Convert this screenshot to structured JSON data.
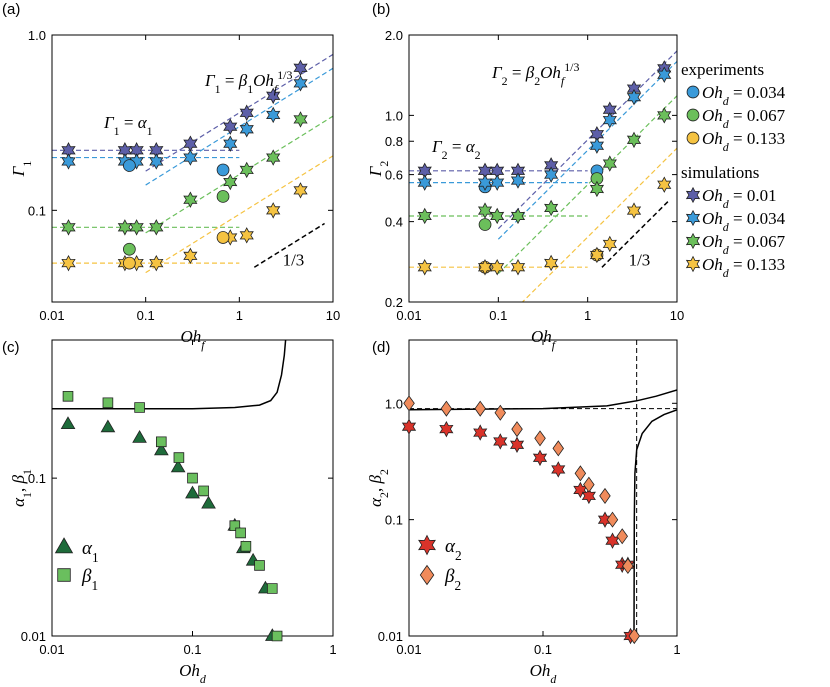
{
  "chart_data": [
    {
      "type": "scatter",
      "label": "(a)",
      "xscale": "log",
      "yscale": "log",
      "xlim": [
        0.01,
        10
      ],
      "ylim": [
        0.03,
        1
      ],
      "xticks": [
        0.01,
        0.1,
        1,
        10
      ],
      "yticks": [
        0.1,
        {
          "value": 1,
          "label": "1.0"
        }
      ],
      "x_label": [
        {
          "text": "Oh"
        },
        {
          "text": "f",
          "pos": "sub"
        }
      ],
      "y_label": [
        {
          "text": "Γ"
        },
        {
          "text": "1",
          "pos": "sub"
        }
      ],
      "annotations": [
        [
          {
            "text": "Γ"
          },
          {
            "text": "1",
            "pos": "sub"
          },
          {
            "text": " = "
          },
          {
            "text": "β"
          },
          {
            "text": "1",
            "pos": "sub"
          },
          {
            "text": "Oh"
          },
          {
            "text": "f",
            "pos": "sub"
          },
          {
            "text": "1/3",
            "pos": "super"
          }
        ],
        [
          {
            "text": "Γ"
          },
          {
            "text": "1",
            "pos": "sub"
          },
          {
            "text": " = "
          },
          {
            "text": "α"
          },
          {
            "text": "1",
            "pos": "sub"
          }
        ]
      ],
      "slope": {
        "label": "1/3",
        "value": 0.333
      },
      "series": [
        {
          "marker": "star",
          "color": "#5d5fa8",
          "x": [
            0.015,
            0.06,
            0.08,
            0.13,
            0.3,
            0.8,
            1.2,
            2.3,
            4.5
          ],
          "values": [
            0.22,
            0.22,
            0.22,
            0.22,
            0.24,
            0.3,
            0.36,
            0.45,
            0.65
          ],
          "alpha": 0.22,
          "beta": 0.36
        },
        {
          "marker": "star",
          "color": "#3a9ad9",
          "x": [
            0.015,
            0.06,
            0.08,
            0.13,
            0.3,
            0.8,
            1.2,
            2.3,
            4.5
          ],
          "values": [
            0.19,
            0.19,
            0.19,
            0.19,
            0.2,
            0.24,
            0.29,
            0.35,
            0.53
          ],
          "alpha": 0.2,
          "beta": 0.3
        },
        {
          "marker": "star",
          "color": "#6bbf5b",
          "x": [
            0.015,
            0.06,
            0.08,
            0.13,
            0.3,
            0.8,
            1.2,
            2.3,
            4.5
          ],
          "values": [
            0.08,
            0.08,
            0.08,
            0.08,
            0.115,
            0.145,
            0.17,
            0.2,
            0.33
          ],
          "alpha": 0.08,
          "beta": 0.16
        },
        {
          "marker": "star",
          "color": "#f5c342",
          "x": [
            0.015,
            0.06,
            0.08,
            0.13,
            0.3,
            0.8,
            1.2,
            2.3,
            4.5
          ],
          "values": [
            0.05,
            0.05,
            0.05,
            0.05,
            0.055,
            0.07,
            0.072,
            0.1,
            0.13
          ],
          "alpha": 0.05,
          "beta": 0.095
        },
        {
          "marker": "circle",
          "color": "#3a9ad9",
          "x": [
            0.067,
            0.67
          ],
          "values": [
            0.18,
            0.17
          ]
        },
        {
          "marker": "circle",
          "color": "#6bbf5b",
          "x": [
            0.067,
            0.67
          ],
          "values": [
            0.06,
            0.12
          ]
        },
        {
          "marker": "circle",
          "color": "#f5c342",
          "x": [
            0.067,
            0.67
          ],
          "values": [
            0.05,
            0.07
          ]
        }
      ]
    },
    {
      "type": "scatter",
      "label": "(b)",
      "xscale": "log",
      "yscale": "log",
      "xlim": [
        0.01,
        10
      ],
      "ylim": [
        0.2,
        2
      ],
      "xticks": [
        0.01,
        0.1,
        1,
        10
      ],
      "yticks": [
        0.2,
        0.4,
        0.6,
        0.8,
        {
          "value": 1,
          "label": "1.0"
        },
        {
          "value": 2,
          "label": "2.0"
        }
      ],
      "x_label": [
        {
          "text": "Oh"
        },
        {
          "text": "f",
          "pos": "sub"
        }
      ],
      "y_label": [
        {
          "text": "Γ"
        },
        {
          "text": "2",
          "pos": "sub"
        }
      ],
      "annotations": [
        [
          {
            "text": "Γ"
          },
          {
            "text": "2",
            "pos": "sub"
          },
          {
            "text": " = "
          },
          {
            "text": "β"
          },
          {
            "text": "2",
            "pos": "sub"
          },
          {
            "text": "Oh"
          },
          {
            "text": "f",
            "pos": "sub"
          },
          {
            "text": "1/3",
            "pos": "super"
          }
        ],
        [
          {
            "text": "Γ"
          },
          {
            "text": "2",
            "pos": "sub"
          },
          {
            "text": " = "
          },
          {
            "text": "α"
          },
          {
            "text": "2",
            "pos": "sub"
          }
        ]
      ],
      "slope": {
        "label": "1/3",
        "value": 0.333
      },
      "legend_titles": {
        "circle": "experiments",
        "star": "simulations"
      },
      "series": [
        {
          "name": [
            {
              "text": "Oh"
            },
            {
              "text": "d",
              "pos": "sub"
            },
            {
              "text": " = 0.034"
            }
          ],
          "marker": "circle",
          "color": "#3a9ad9",
          "x": [
            0.071,
            1.27
          ],
          "values": [
            0.54,
            0.62
          ]
        },
        {
          "name": [
            {
              "text": "Oh"
            },
            {
              "text": "d",
              "pos": "sub"
            },
            {
              "text": " = 0.067"
            }
          ],
          "marker": "circle",
          "color": "#6bbf5b",
          "x": [
            0.071,
            1.27
          ],
          "values": [
            0.39,
            0.58
          ]
        },
        {
          "name": [
            {
              "text": "Oh"
            },
            {
              "text": "d",
              "pos": "sub"
            },
            {
              "text": " = 0.133"
            }
          ],
          "marker": "circle",
          "color": "#f5c342",
          "x": [
            0.071,
            1.27
          ],
          "values": [
            0.27,
            0.3
          ]
        },
        {
          "name": [
            {
              "text": "Oh"
            },
            {
              "text": "d",
              "pos": "sub"
            },
            {
              "text": " = 0.01"
            }
          ],
          "marker": "star",
          "color": "#5d5fa8",
          "x": [
            0.015,
            0.071,
            0.097,
            0.166,
            0.39,
            1.27,
            1.77,
            3.3,
            7.2
          ],
          "values": [
            0.62,
            0.62,
            0.62,
            0.62,
            0.65,
            0.85,
            1.05,
            1.26,
            1.5
          ],
          "alpha": 0.62,
          "beta": 0.81
        },
        {
          "name": [
            {
              "text": "Oh"
            },
            {
              "text": "d",
              "pos": "sub"
            },
            {
              "text": " = 0.034"
            }
          ],
          "marker": "star",
          "color": "#3a9ad9",
          "x": [
            0.015,
            0.071,
            0.097,
            0.166,
            0.39,
            1.27,
            1.77,
            3.3,
            7.2
          ],
          "values": [
            0.56,
            0.56,
            0.56,
            0.57,
            0.6,
            0.77,
            0.96,
            1.17,
            1.42
          ],
          "alpha": 0.56,
          "beta": 0.74
        },
        {
          "name": [
            {
              "text": "Oh"
            },
            {
              "text": "d",
              "pos": "sub"
            },
            {
              "text": " = 0.067"
            }
          ],
          "marker": "star",
          "color": "#6bbf5b",
          "x": [
            0.015,
            0.071,
            0.097,
            0.166,
            0.39,
            1.27,
            1.77,
            3.3,
            7.2
          ],
          "values": [
            0.42,
            0.44,
            0.42,
            0.42,
            0.45,
            0.53,
            0.66,
            0.81,
            1.0
          ],
          "alpha": 0.42,
          "beta": 0.55
        },
        {
          "name": [
            {
              "text": "Oh"
            },
            {
              "text": "d",
              "pos": "sub"
            },
            {
              "text": " = 0.133"
            }
          ],
          "marker": "star",
          "color": "#f5c342",
          "x": [
            0.015,
            0.071,
            0.097,
            0.166,
            0.39,
            1.27,
            1.77,
            3.3,
            7.2
          ],
          "values": [
            0.27,
            0.27,
            0.27,
            0.27,
            0.28,
            0.3,
            0.33,
            0.44,
            0.55
          ],
          "alpha": 0.27,
          "beta": 0.35
        }
      ]
    },
    {
      "type": "scatter",
      "label": "(c)",
      "xscale": "log",
      "yscale": "log",
      "xlim": [
        0.01,
        1
      ],
      "ylim": [
        0.01,
        0.75
      ],
      "xticks": [
        0.01,
        0.1,
        1
      ],
      "yticks": [
        0.01,
        0.1
      ],
      "x_label": [
        {
          "text": "Oh"
        },
        {
          "text": "d",
          "pos": "sub"
        }
      ],
      "y_label": [
        {
          "text": "α"
        },
        {
          "text": "1",
          "pos": "sub"
        },
        {
          "text": ", "
        },
        {
          "text": "β"
        },
        {
          "text": "1",
          "pos": "sub"
        }
      ],
      "series": [
        {
          "name": [
            {
              "text": "α"
            },
            {
              "text": "1",
              "pos": "sub"
            }
          ],
          "marker": "triangle",
          "color": "#1e6b3a",
          "x": [
            0.013,
            0.025,
            0.042,
            0.06,
            0.079,
            0.1,
            0.13,
            0.2,
            0.23,
            0.27,
            0.33,
            0.37
          ],
          "values": [
            0.22,
            0.21,
            0.18,
            0.15,
            0.117,
            0.08,
            0.069,
            0.05,
            0.036,
            0.03,
            0.02,
            0.01
          ]
        },
        {
          "name": [
            {
              "text": "β"
            },
            {
              "text": "1",
              "pos": "sub"
            }
          ],
          "marker": "square",
          "color": "#6abf5e",
          "x": [
            0.013,
            0.025,
            0.042,
            0.06,
            0.08,
            0.1,
            0.12,
            0.2,
            0.22,
            0.24,
            0.3,
            0.37,
            0.4
          ],
          "values": [
            0.33,
            0.3,
            0.28,
            0.17,
            0.135,
            0.1,
            0.083,
            0.05,
            0.045,
            0.037,
            0.028,
            0.02,
            0.01
          ]
        }
      ],
      "lines": [
        {
          "color": "#000000",
          "x": [
            0.01,
            0.05,
            0.1,
            0.2,
            0.3,
            0.36,
            0.4,
            0.43,
            0.45,
            0.46
          ],
          "values": [
            0.275,
            0.275,
            0.275,
            0.28,
            0.29,
            0.31,
            0.35,
            0.45,
            0.6,
            0.75
          ]
        }
      ]
    },
    {
      "type": "scatter",
      "label": "(d)",
      "xscale": "log",
      "yscale": "log",
      "xlim": [
        0.01,
        1
      ],
      "ylim": [
        0.01,
        3.5
      ],
      "xticks": [
        0.01,
        0.1,
        1
      ],
      "yticks": [
        0.01,
        0.1,
        {
          "value": 1,
          "label": "1.0"
        }
      ],
      "x_label": [
        {
          "text": "Oh"
        },
        {
          "text": "d",
          "pos": "sub"
        }
      ],
      "y_label": [
        {
          "text": "α"
        },
        {
          "text": "2",
          "pos": "sub"
        },
        {
          "text": ", "
        },
        {
          "text": "β"
        },
        {
          "text": "2",
          "pos": "sub"
        }
      ],
      "series": [
        {
          "name": [
            {
              "text": "α"
            },
            {
              "text": "2",
              "pos": "sub"
            }
          ],
          "marker": "star",
          "color": "#d9332a",
          "x": [
            0.01,
            0.019,
            0.034,
            0.048,
            0.064,
            0.095,
            0.13,
            0.19,
            0.22,
            0.29,
            0.33,
            0.39,
            0.43,
            0.45
          ],
          "values": [
            0.63,
            0.6,
            0.56,
            0.47,
            0.44,
            0.34,
            0.27,
            0.18,
            0.16,
            0.1,
            0.066,
            0.041,
            0.041,
            0.01
          ]
        },
        {
          "name": [
            {
              "text": "β"
            },
            {
              "text": "2",
              "pos": "sub"
            }
          ],
          "marker": "diamond",
          "color": "#f08b5b",
          "x": [
            0.01,
            0.019,
            0.034,
            0.048,
            0.064,
            0.095,
            0.13,
            0.19,
            0.22,
            0.29,
            0.33,
            0.39,
            0.43,
            0.48
          ],
          "values": [
            1.0,
            0.9,
            0.9,
            0.83,
            0.6,
            0.5,
            0.41,
            0.25,
            0.2,
            0.16,
            0.1,
            0.072,
            0.04,
            0.01
          ]
        }
      ],
      "lines": [
        {
          "color": "#000000",
          "x": [
            0.01,
            0.1,
            0.3,
            0.5,
            0.7,
            1
          ],
          "values": [
            0.88,
            0.9,
            0.95,
            1.05,
            1.15,
            1.3
          ]
        },
        {
          "color": "#000000",
          "x": [
            0.478,
            0.48,
            0.485,
            0.5,
            0.55,
            0.65,
            0.8,
            1
          ],
          "values": [
            0.01,
            0.1,
            0.25,
            0.4,
            0.55,
            0.7,
            0.8,
            0.88
          ]
        }
      ],
      "reference_lines": {
        "y": 0.9,
        "x": 0.5
      }
    }
  ]
}
